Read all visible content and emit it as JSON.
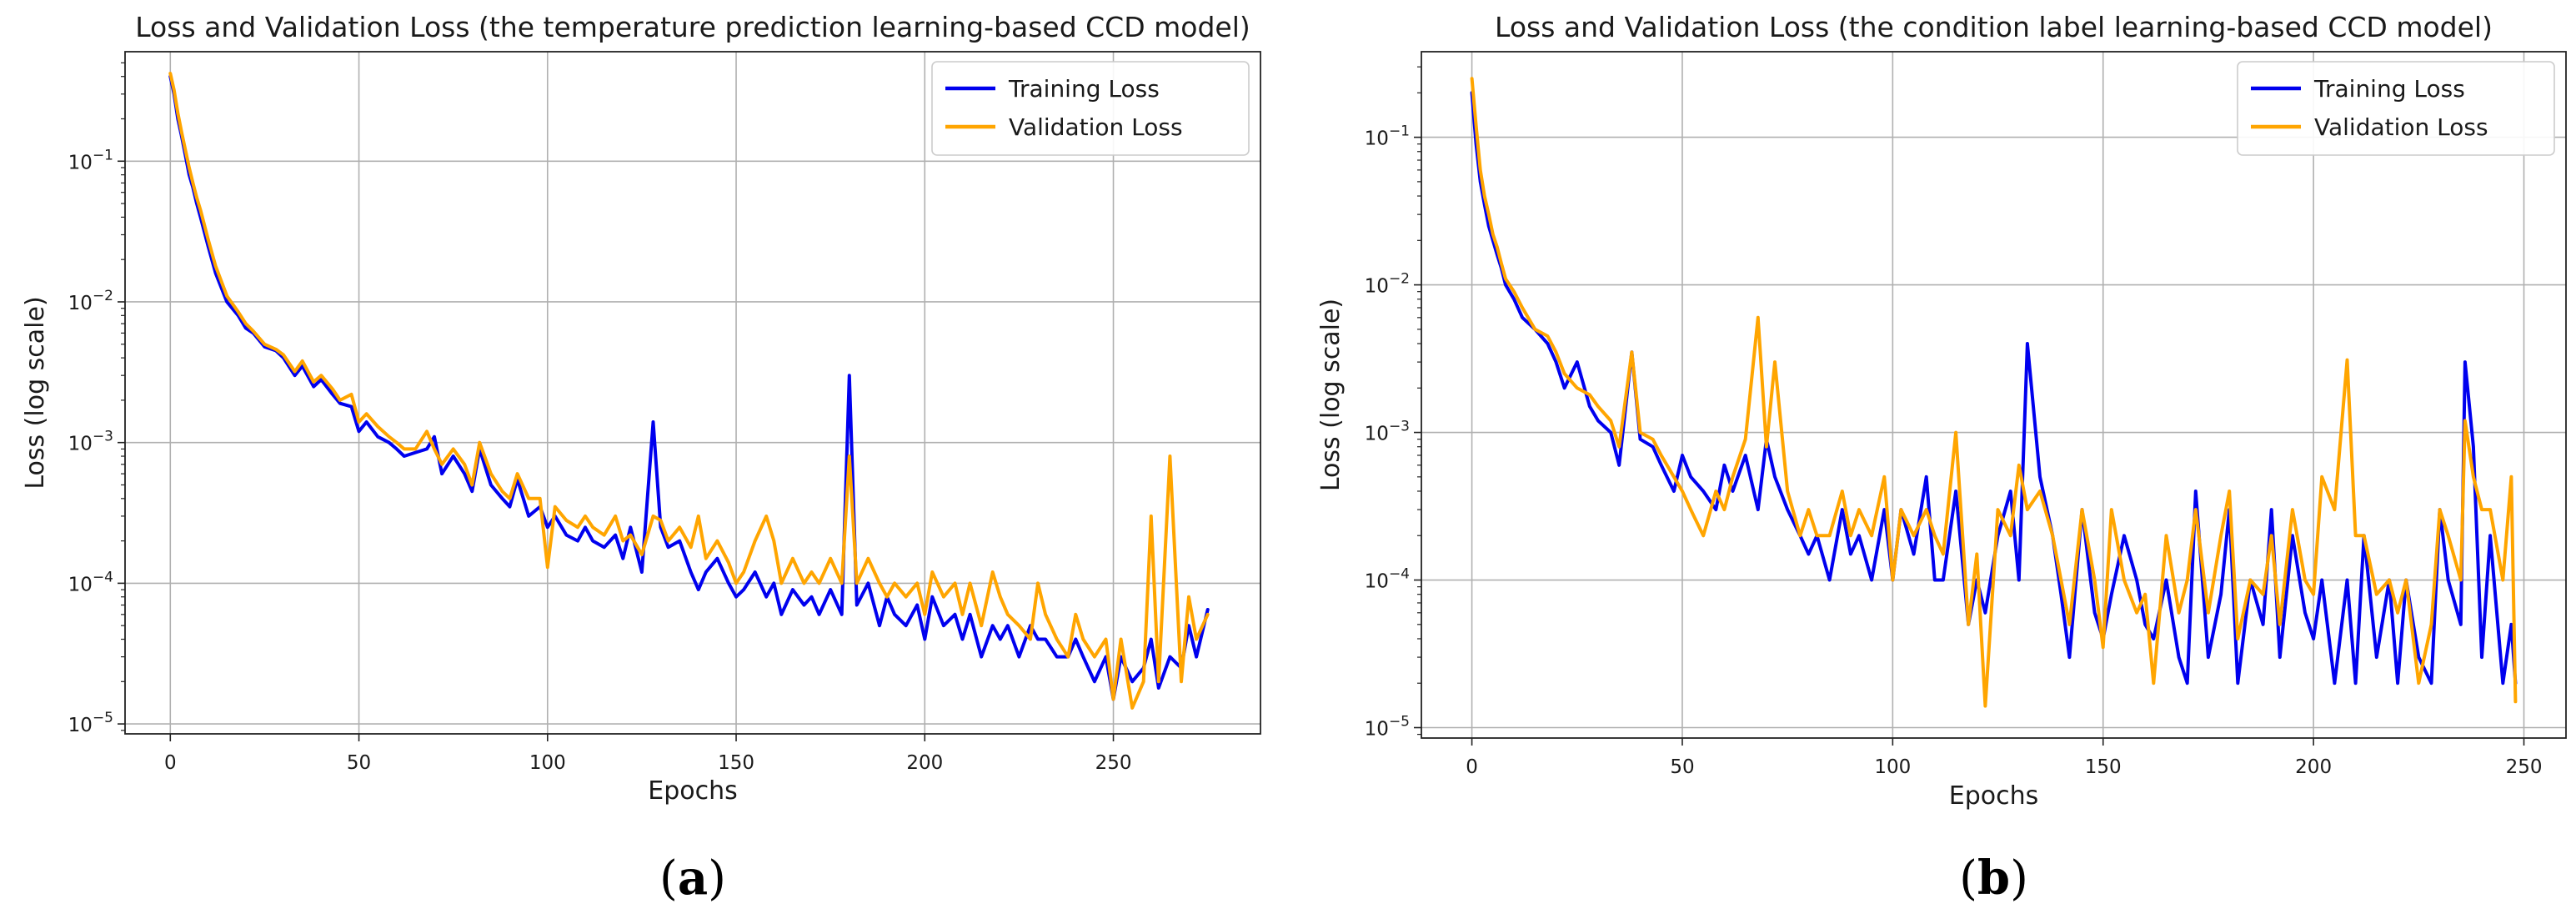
{
  "chart_data": [
    {
      "type": "line",
      "panel_label": {
        "open": "(",
        "letter": "a",
        "close": ")"
      },
      "title": "Loss and Validation Loss (the temperature prediction learning-based CCD model)",
      "xlabel": "Epochs",
      "ylabel": "Loss (log scale)",
      "yscale": "log",
      "xlim": [
        -12,
        289
      ],
      "ylim": [
        8.5e-06,
        0.6
      ],
      "xticks": [
        0,
        50,
        100,
        150,
        200,
        250
      ],
      "xtick_labels": [
        "0",
        "50",
        "100",
        "150",
        "200",
        "250"
      ],
      "yticks": [
        1e-05,
        0.0001,
        0.001,
        0.01,
        0.1
      ],
      "ytick_labels": [
        {
          "base": "10",
          "exp": "−5"
        },
        {
          "base": "10",
          "exp": "−4"
        },
        {
          "base": "10",
          "exp": "−3"
        },
        {
          "base": "10",
          "exp": "−2"
        },
        {
          "base": "10",
          "exp": "−1"
        }
      ],
      "grid": true,
      "legend_position": "top-right",
      "series": [
        {
          "name": "Training Loss",
          "color": "#0000ee",
          "x": [
            0,
            1,
            2,
            3,
            4,
            5,
            6,
            7,
            8,
            10,
            12,
            15,
            18,
            20,
            22,
            25,
            28,
            30,
            33,
            35,
            38,
            40,
            43,
            45,
            48,
            50,
            52,
            55,
            58,
            60,
            62,
            65,
            68,
            70,
            72,
            75,
            78,
            80,
            82,
            85,
            88,
            90,
            92,
            95,
            98,
            100,
            102,
            105,
            108,
            110,
            112,
            115,
            118,
            120,
            122,
            125,
            128,
            130,
            132,
            135,
            138,
            140,
            142,
            145,
            148,
            150,
            152,
            155,
            158,
            160,
            162,
            165,
            168,
            170,
            172,
            175,
            178,
            180,
            182,
            185,
            188,
            190,
            192,
            195,
            198,
            200,
            202,
            205,
            208,
            210,
            212,
            215,
            218,
            220,
            222,
            225,
            228,
            230,
            232,
            235,
            238,
            240,
            242,
            245,
            248,
            250,
            252,
            255,
            258,
            260,
            262,
            265,
            268,
            270,
            272,
            275
          ],
          "y": [
            0.4,
            0.3,
            0.2,
            0.15,
            0.11,
            0.08,
            0.065,
            0.05,
            0.04,
            0.025,
            0.016,
            0.01,
            0.008,
            0.0065,
            0.006,
            0.0048,
            0.0045,
            0.004,
            0.003,
            0.0035,
            0.0025,
            0.0028,
            0.0022,
            0.0019,
            0.0018,
            0.0012,
            0.0014,
            0.0011,
            0.001,
            0.0009,
            0.0008,
            0.00085,
            0.0009,
            0.0011,
            0.0006,
            0.0008,
            0.0006,
            0.00045,
            0.0009,
            0.0005,
            0.0004,
            0.00035,
            0.00055,
            0.0003,
            0.00035,
            0.00025,
            0.0003,
            0.00022,
            0.0002,
            0.00025,
            0.0002,
            0.00018,
            0.00022,
            0.00015,
            0.00025,
            0.00012,
            0.0014,
            0.00025,
            0.00018,
            0.0002,
            0.00012,
            9e-05,
            0.00012,
            0.00015,
            0.0001,
            8e-05,
            9e-05,
            0.00012,
            8e-05,
            0.0001,
            6e-05,
            9e-05,
            7e-05,
            8e-05,
            6e-05,
            9e-05,
            6e-05,
            0.003,
            7e-05,
            0.0001,
            5e-05,
            8e-05,
            6e-05,
            5e-05,
            7e-05,
            4e-05,
            8e-05,
            5e-05,
            6e-05,
            4e-05,
            6e-05,
            3e-05,
            5e-05,
            4e-05,
            5e-05,
            3e-05,
            5e-05,
            4e-05,
            4e-05,
            3e-05,
            3e-05,
            4e-05,
            3e-05,
            2e-05,
            3e-05,
            1.5e-05,
            3e-05,
            2e-05,
            2.5e-05,
            4e-05,
            1.8e-05,
            3e-05,
            2.5e-05,
            5e-05,
            3e-05,
            6.5e-05
          ]
        },
        {
          "name": "Validation Loss",
          "color": "#ffa500",
          "x": [
            0,
            1,
            2,
            3,
            4,
            5,
            6,
            7,
            8,
            10,
            12,
            15,
            18,
            20,
            22,
            25,
            28,
            30,
            33,
            35,
            38,
            40,
            43,
            45,
            48,
            50,
            52,
            55,
            58,
            60,
            62,
            65,
            68,
            70,
            72,
            75,
            78,
            80,
            82,
            85,
            88,
            90,
            92,
            95,
            98,
            100,
            102,
            105,
            108,
            110,
            112,
            115,
            118,
            120,
            122,
            125,
            128,
            130,
            132,
            135,
            138,
            140,
            142,
            145,
            148,
            150,
            152,
            155,
            158,
            160,
            162,
            165,
            168,
            170,
            172,
            175,
            178,
            180,
            182,
            185,
            188,
            190,
            192,
            195,
            198,
            200,
            202,
            205,
            208,
            210,
            212,
            215,
            218,
            220,
            222,
            225,
            228,
            230,
            232,
            235,
            238,
            240,
            242,
            245,
            248,
            250,
            252,
            255,
            258,
            260,
            262,
            265,
            268,
            270,
            272,
            275
          ],
          "y": [
            0.42,
            0.32,
            0.22,
            0.16,
            0.12,
            0.09,
            0.07,
            0.055,
            0.045,
            0.028,
            0.018,
            0.011,
            0.0085,
            0.007,
            0.0062,
            0.005,
            0.0046,
            0.0042,
            0.0032,
            0.0038,
            0.0027,
            0.003,
            0.0024,
            0.002,
            0.0022,
            0.0014,
            0.0016,
            0.0013,
            0.0011,
            0.001,
            0.0009,
            0.0009,
            0.0012,
            0.0009,
            0.0007,
            0.0009,
            0.0007,
            0.0005,
            0.001,
            0.0006,
            0.00045,
            0.0004,
            0.0006,
            0.0004,
            0.0004,
            0.00013,
            0.00035,
            0.00028,
            0.00025,
            0.0003,
            0.00025,
            0.00022,
            0.0003,
            0.0002,
            0.00022,
            0.00016,
            0.0003,
            0.00028,
            0.0002,
            0.00025,
            0.00018,
            0.0003,
            0.00015,
            0.0002,
            0.00014,
            0.0001,
            0.00012,
            0.0002,
            0.0003,
            0.0002,
            0.0001,
            0.00015,
            0.0001,
            0.00012,
            0.0001,
            0.00015,
            0.0001,
            0.0008,
            0.0001,
            0.00015,
            0.0001,
            8e-05,
            0.0001,
            8e-05,
            0.0001,
            6e-05,
            0.00012,
            8e-05,
            0.0001,
            6e-05,
            0.0001,
            5e-05,
            0.00012,
            8e-05,
            6e-05,
            5e-05,
            4e-05,
            0.0001,
            6e-05,
            4e-05,
            3e-05,
            6e-05,
            4e-05,
            3e-05,
            4e-05,
            1.5e-05,
            4e-05,
            1.3e-05,
            2e-05,
            0.0003,
            2e-05,
            0.0008,
            2e-05,
            8e-05,
            4e-05,
            6e-05
          ]
        }
      ]
    },
    {
      "type": "line",
      "panel_label": {
        "open": "(",
        "letter": "b",
        "close": ")"
      },
      "title": "Loss and Validation Loss (the condition label learning-based CCD model)",
      "xlabel": "Epochs",
      "ylabel": "Loss (log scale)",
      "yscale": "log",
      "xlim": [
        -12,
        260
      ],
      "ylim": [
        8.5e-06,
        0.38
      ],
      "xticks": [
        0,
        50,
        100,
        150,
        200,
        250
      ],
      "xtick_labels": [
        "0",
        "50",
        "100",
        "150",
        "200",
        "250"
      ],
      "yticks": [
        1e-05,
        0.0001,
        0.001,
        0.01,
        0.1
      ],
      "ytick_labels": [
        {
          "base": "10",
          "exp": "−5"
        },
        {
          "base": "10",
          "exp": "−4"
        },
        {
          "base": "10",
          "exp": "−3"
        },
        {
          "base": "10",
          "exp": "−2"
        },
        {
          "base": "10",
          "exp": "−1"
        }
      ],
      "grid": true,
      "legend_position": "top-right",
      "series": [
        {
          "name": "Training Loss",
          "color": "#0000ee",
          "x": [
            0,
            1,
            2,
            3,
            4,
            5,
            6,
            7,
            8,
            10,
            12,
            15,
            18,
            20,
            22,
            25,
            28,
            30,
            33,
            35,
            38,
            40,
            43,
            45,
            48,
            50,
            52,
            55,
            58,
            60,
            62,
            65,
            68,
            70,
            72,
            75,
            78,
            80,
            82,
            85,
            88,
            90,
            92,
            95,
            98,
            100,
            102,
            105,
            108,
            110,
            112,
            115,
            118,
            120,
            122,
            125,
            128,
            130,
            132,
            135,
            138,
            140,
            142,
            145,
            148,
            150,
            152,
            155,
            158,
            160,
            162,
            165,
            168,
            170,
            172,
            175,
            178,
            180,
            182,
            185,
            188,
            190,
            192,
            195,
            198,
            200,
            202,
            205,
            208,
            210,
            212,
            215,
            218,
            220,
            222,
            225,
            228,
            230,
            232,
            235,
            236,
            238,
            240,
            242,
            245,
            247,
            248
          ],
          "y": [
            0.2,
            0.09,
            0.05,
            0.035,
            0.025,
            0.02,
            0.016,
            0.013,
            0.01,
            0.008,
            0.006,
            0.005,
            0.004,
            0.003,
            0.002,
            0.003,
            0.0015,
            0.0012,
            0.001,
            0.0006,
            0.0035,
            0.0009,
            0.0008,
            0.0006,
            0.0004,
            0.0007,
            0.0005,
            0.0004,
            0.0003,
            0.0006,
            0.0004,
            0.0007,
            0.0003,
            0.0009,
            0.0005,
            0.0003,
            0.0002,
            0.00015,
            0.0002,
            0.0001,
            0.0003,
            0.00015,
            0.0002,
            0.0001,
            0.0003,
            0.0001,
            0.0003,
            0.00015,
            0.0005,
            0.0001,
            0.0001,
            0.0004,
            5e-05,
            0.0001,
            6e-05,
            0.0002,
            0.0004,
            0.0001,
            0.004,
            0.0005,
            0.0002,
            8e-05,
            3e-05,
            0.0003,
            6e-05,
            4e-05,
            8e-05,
            0.0002,
            0.0001,
            5e-05,
            4e-05,
            0.0001,
            3e-05,
            2e-05,
            0.0004,
            3e-05,
            8e-05,
            0.0003,
            2e-05,
            0.0001,
            5e-05,
            0.0003,
            3e-05,
            0.0002,
            6e-05,
            4e-05,
            0.0001,
            2e-05,
            0.0001,
            2e-05,
            0.0002,
            3e-05,
            0.0001,
            2e-05,
            0.0001,
            3e-05,
            2e-05,
            0.0003,
            0.0001,
            5e-05,
            0.003,
            0.0008,
            3e-05,
            0.0002,
            2e-05,
            5e-05,
            2e-05
          ]
        },
        {
          "name": "Validation Loss",
          "color": "#ffa500",
          "x": [
            0,
            1,
            2,
            3,
            4,
            5,
            6,
            7,
            8,
            10,
            12,
            15,
            18,
            20,
            22,
            25,
            28,
            30,
            33,
            35,
            38,
            40,
            43,
            45,
            48,
            50,
            52,
            55,
            58,
            60,
            62,
            65,
            68,
            70,
            72,
            75,
            78,
            80,
            82,
            85,
            88,
            90,
            92,
            95,
            98,
            100,
            102,
            105,
            108,
            110,
            112,
            115,
            118,
            120,
            122,
            125,
            128,
            130,
            132,
            135,
            138,
            140,
            142,
            145,
            148,
            150,
            152,
            155,
            158,
            160,
            162,
            165,
            168,
            170,
            172,
            175,
            178,
            180,
            182,
            185,
            188,
            190,
            192,
            195,
            198,
            200,
            202,
            205,
            208,
            210,
            212,
            215,
            218,
            220,
            222,
            225,
            228,
            230,
            232,
            235,
            236,
            238,
            240,
            242,
            245,
            247,
            248
          ],
          "y": [
            0.25,
            0.12,
            0.06,
            0.04,
            0.03,
            0.022,
            0.018,
            0.014,
            0.011,
            0.009,
            0.007,
            0.005,
            0.0045,
            0.0035,
            0.0025,
            0.002,
            0.0018,
            0.0015,
            0.0012,
            0.0008,
            0.0035,
            0.001,
            0.0009,
            0.0007,
            0.0005,
            0.0004,
            0.0003,
            0.0002,
            0.0004,
            0.0003,
            0.0005,
            0.0009,
            0.006,
            0.0008,
            0.003,
            0.0004,
            0.0002,
            0.0003,
            0.0002,
            0.0002,
            0.0004,
            0.0002,
            0.0003,
            0.0002,
            0.0005,
            0.0001,
            0.0003,
            0.0002,
            0.0003,
            0.0002,
            0.00015,
            0.001,
            5e-05,
            0.00015,
            1.4e-05,
            0.0003,
            0.0002,
            0.0006,
            0.0003,
            0.0004,
            0.0002,
            0.0001,
            5e-05,
            0.0003,
            0.0001,
            3.5e-05,
            0.0003,
            0.0001,
            6e-05,
            8e-05,
            2e-05,
            0.0002,
            6e-05,
            0.0001,
            0.0003,
            6e-05,
            0.0002,
            0.0004,
            4e-05,
            0.0001,
            8e-05,
            0.0002,
            5e-05,
            0.0003,
            0.0001,
            8e-05,
            0.0005,
            0.0003,
            0.0031,
            0.0002,
            0.0002,
            8e-05,
            0.0001,
            6e-05,
            0.0001,
            2e-05,
            5e-05,
            0.0003,
            0.0002,
            0.0001,
            0.0012,
            0.0005,
            0.0003,
            0.0003,
            0.0001,
            0.0005,
            1.5e-05
          ]
        }
      ]
    }
  ]
}
